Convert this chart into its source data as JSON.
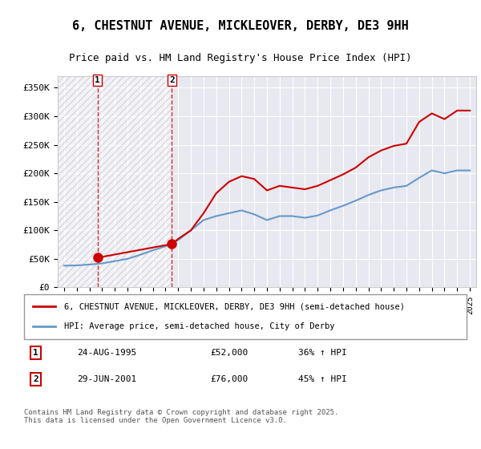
{
  "title": "6, CHESTNUT AVENUE, MICKLEOVER, DERBY, DE3 9HH",
  "subtitle": "Price paid vs. HM Land Registry's House Price Index (HPI)",
  "ylabel": "",
  "background_color": "#ffffff",
  "plot_bg_color": "#e8e8f0",
  "hatch_color": "#ccccdd",
  "red_line_color": "#cc0000",
  "blue_line_color": "#6699cc",
  "transaction1_x": 1995.648,
  "transaction1_y": 52000,
  "transaction1_label": "1",
  "transaction2_x": 2001.493,
  "transaction2_y": 76000,
  "transaction2_label": "2",
  "dashed_x1": 1995.648,
  "dashed_x2": 2001.493,
  "ylim_min": 0,
  "ylim_max": 370000,
  "xlim_min": 1992.5,
  "xlim_max": 2025.5,
  "yticks": [
    0,
    50000,
    100000,
    150000,
    200000,
    250000,
    300000,
    350000
  ],
  "ytick_labels": [
    "£0",
    "£50K",
    "£100K",
    "£150K",
    "£200K",
    "£250K",
    "£300K",
    "£350K"
  ],
  "xtick_years": [
    1993,
    1994,
    1995,
    1996,
    1997,
    1998,
    1999,
    2000,
    2001,
    2002,
    2003,
    2004,
    2005,
    2006,
    2007,
    2008,
    2009,
    2010,
    2011,
    2012,
    2013,
    2014,
    2015,
    2016,
    2017,
    2018,
    2019,
    2020,
    2021,
    2022,
    2023,
    2024,
    2025
  ],
  "legend_red": "6, CHESTNUT AVENUE, MICKLEOVER, DERBY, DE3 9HH (semi-detached house)",
  "legend_blue": "HPI: Average price, semi-detached house, City of Derby",
  "note1_box": "1",
  "note1_date": "24-AUG-1995",
  "note1_price": "£52,000",
  "note1_hpi": "36% ↑ HPI",
  "note2_box": "2",
  "note2_date": "29-JUN-2001",
  "note2_price": "£76,000",
  "note2_hpi": "45% ↑ HPI",
  "footer": "Contains HM Land Registry data © Crown copyright and database right 2025.\nThis data is licensed under the Open Government Licence v3.0.",
  "red_series_x": [
    1995.648,
    2001.493,
    2001.493,
    2002.0,
    2003.0,
    2004.0,
    2005.0,
    2006.0,
    2007.0,
    2008.0,
    2009.0,
    2010.0,
    2011.0,
    2012.0,
    2013.0,
    2014.0,
    2015.0,
    2016.0,
    2017.0,
    2018.0,
    2019.0,
    2020.0,
    2021.0,
    2022.0,
    2023.0,
    2024.0,
    2025.0
  ],
  "red_series_y": [
    52000,
    76000,
    76000,
    85000,
    100000,
    130000,
    165000,
    185000,
    195000,
    190000,
    170000,
    178000,
    175000,
    172000,
    178000,
    188000,
    198000,
    210000,
    228000,
    240000,
    248000,
    252000,
    290000,
    305000,
    295000,
    310000,
    310000
  ],
  "blue_series_x": [
    1993.0,
    1994.0,
    1995.0,
    1996.0,
    1997.0,
    1998.0,
    1999.0,
    2000.0,
    2001.0,
    2002.0,
    2003.0,
    2004.0,
    2005.0,
    2006.0,
    2007.0,
    2008.0,
    2009.0,
    2010.0,
    2011.0,
    2012.0,
    2013.0,
    2014.0,
    2015.0,
    2016.0,
    2017.0,
    2018.0,
    2019.0,
    2020.0,
    2021.0,
    2022.0,
    2023.0,
    2024.0,
    2025.0
  ],
  "blue_series_y": [
    38000,
    38500,
    40000,
    42000,
    46000,
    50000,
    57000,
    65000,
    72000,
    83000,
    100000,
    118000,
    125000,
    130000,
    135000,
    128000,
    118000,
    125000,
    125000,
    122000,
    126000,
    135000,
    143000,
    152000,
    162000,
    170000,
    175000,
    178000,
    192000,
    205000,
    200000,
    205000,
    205000
  ]
}
